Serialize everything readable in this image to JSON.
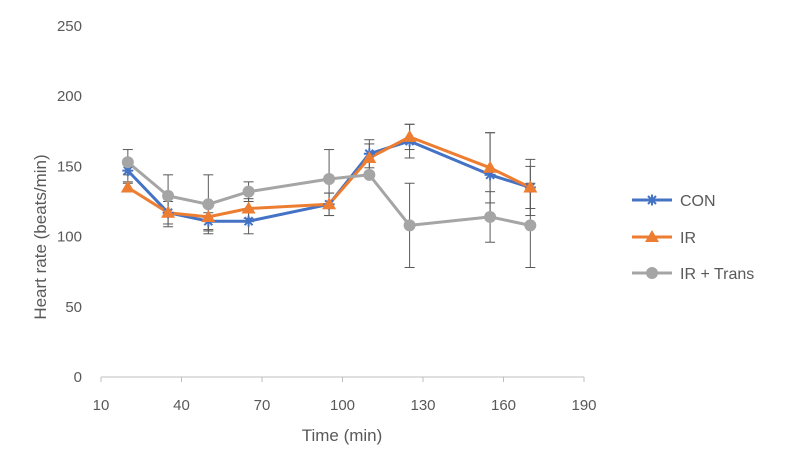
{
  "chart_data": {
    "type": "line",
    "title": "",
    "xlabel": "Time (min)",
    "ylabel": "Heart rate (beats/min)",
    "xlim": [
      10,
      190
    ],
    "ylim": [
      0,
      250
    ],
    "x_ticks": [
      "10",
      "40",
      "70",
      "100",
      "130",
      "160",
      "190"
    ],
    "y_ticks": [
      "0",
      "50",
      "100",
      "150",
      "200",
      "250"
    ],
    "grid": false,
    "legend_position": "right",
    "series": [
      {
        "name": "CON",
        "color": "#4472c4",
        "marker": "asterisk",
        "x": [
          20,
          35,
          50,
          65,
          95,
          110,
          125,
          155,
          170
        ],
        "y": [
          147,
          117,
          111,
          111,
          123,
          159,
          168,
          144,
          135
        ],
        "err": [
          8,
          8,
          6,
          9,
          8,
          10,
          12,
          30,
          15
        ]
      },
      {
        "name": "IR",
        "color": "#ed7d31",
        "marker": "triangle",
        "x": [
          20,
          35,
          50,
          65,
          95,
          110,
          125,
          155,
          170
        ],
        "y": [
          135,
          117,
          114,
          120,
          123,
          156,
          171,
          149,
          135
        ],
        "err": [
          3,
          10,
          10,
          7,
          8,
          10,
          9,
          25,
          20
        ]
      },
      {
        "name": "IR + Trans",
        "color": "#a5a5a5",
        "marker": "circle",
        "x": [
          20,
          35,
          50,
          65,
          95,
          110,
          125,
          155,
          170
        ],
        "y": [
          153,
          129,
          123,
          132,
          141,
          144,
          108,
          114,
          108
        ],
        "err": [
          9,
          15,
          21,
          7,
          21,
          0,
          30,
          18,
          30
        ]
      }
    ]
  }
}
